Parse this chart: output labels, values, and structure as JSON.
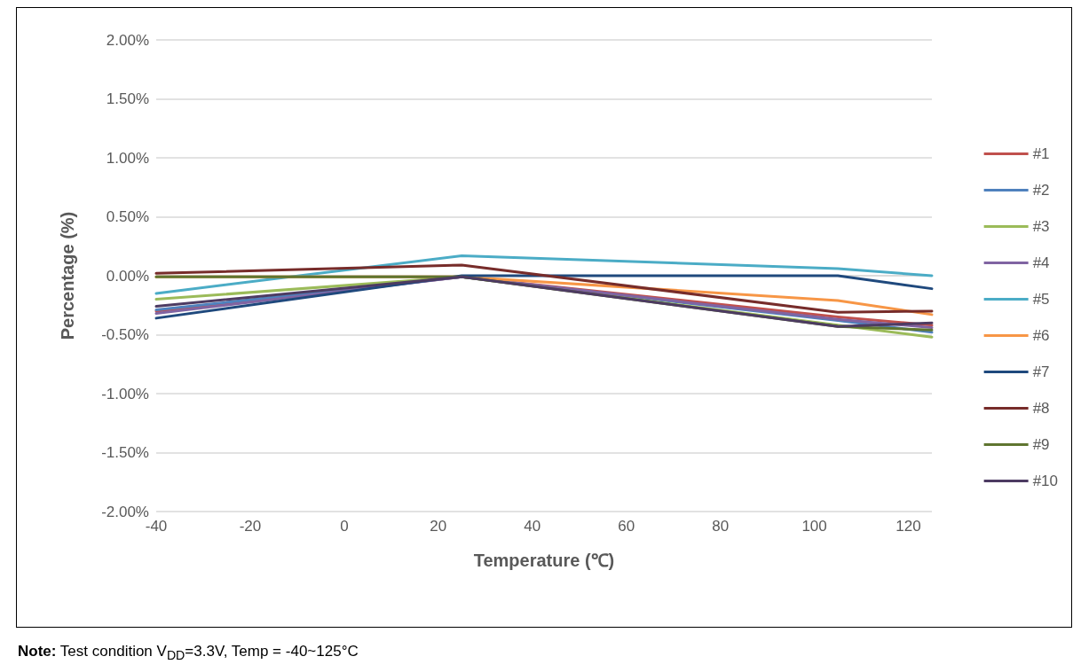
{
  "chart_data": {
    "type": "line",
    "xlabel": "Temperature (℃)",
    "ylabel": "Percentage (%)",
    "x": [
      -40,
      25,
      105,
      125
    ],
    "xlim": [
      -40,
      125
    ],
    "xticks": [
      -40,
      -20,
      0,
      20,
      40,
      60,
      80,
      100,
      120
    ],
    "ylim": [
      -2,
      2
    ],
    "yticks": [
      {
        "value": -2,
        "label": "-2.00%"
      },
      {
        "value": -1.5,
        "label": "-1.50%"
      },
      {
        "value": -1,
        "label": "-1.00%"
      },
      {
        "value": -0.5,
        "label": "-0.50%"
      },
      {
        "value": 0,
        "label": "0.00%"
      },
      {
        "value": 0.5,
        "label": "0.50%"
      },
      {
        "value": 1,
        "label": "1.00%"
      },
      {
        "value": 1.5,
        "label": "1.50%"
      },
      {
        "value": 2,
        "label": "2.00%"
      }
    ],
    "grid": "y",
    "legend": "right",
    "marker": "none",
    "line_style": "solid",
    "series": [
      {
        "name": "#1",
        "color": "#c0504d",
        "values": [
          -0.3,
          -0.01,
          -0.35,
          -0.42
        ]
      },
      {
        "name": "#2",
        "color": "#4f81bd",
        "values": [
          -0.29,
          -0.01,
          -0.38,
          -0.48
        ]
      },
      {
        "name": "#3",
        "color": "#9bbb59",
        "values": [
          -0.2,
          -0.01,
          -0.42,
          -0.52
        ]
      },
      {
        "name": "#4",
        "color": "#8064a2",
        "values": [
          -0.32,
          -0.01,
          -0.37,
          -0.44
        ]
      },
      {
        "name": "#5",
        "color": "#4bacc6",
        "values": [
          -0.15,
          0.17,
          0.06,
          0
        ]
      },
      {
        "name": "#6",
        "color": "#f79646",
        "values": [
          -0.01,
          -0.01,
          -0.21,
          -0.33
        ]
      },
      {
        "name": "#7",
        "color": "#1f497d",
        "values": [
          -0.36,
          0,
          0,
          -0.11
        ]
      },
      {
        "name": "#8",
        "color": "#772c2a",
        "values": [
          0.02,
          0.09,
          -0.31,
          -0.3
        ]
      },
      {
        "name": "#9",
        "color": "#5f7530",
        "values": [
          -0.01,
          -0.01,
          -0.43,
          -0.46
        ]
      },
      {
        "name": "#10",
        "color": "#4d3b62",
        "values": [
          -0.26,
          -0.01,
          -0.43,
          -0.4
        ]
      }
    ],
    "annotations": [
      "Note: Test condition V$_{DD}$=3.3V, Temp = -40~125°C"
    ]
  }
}
